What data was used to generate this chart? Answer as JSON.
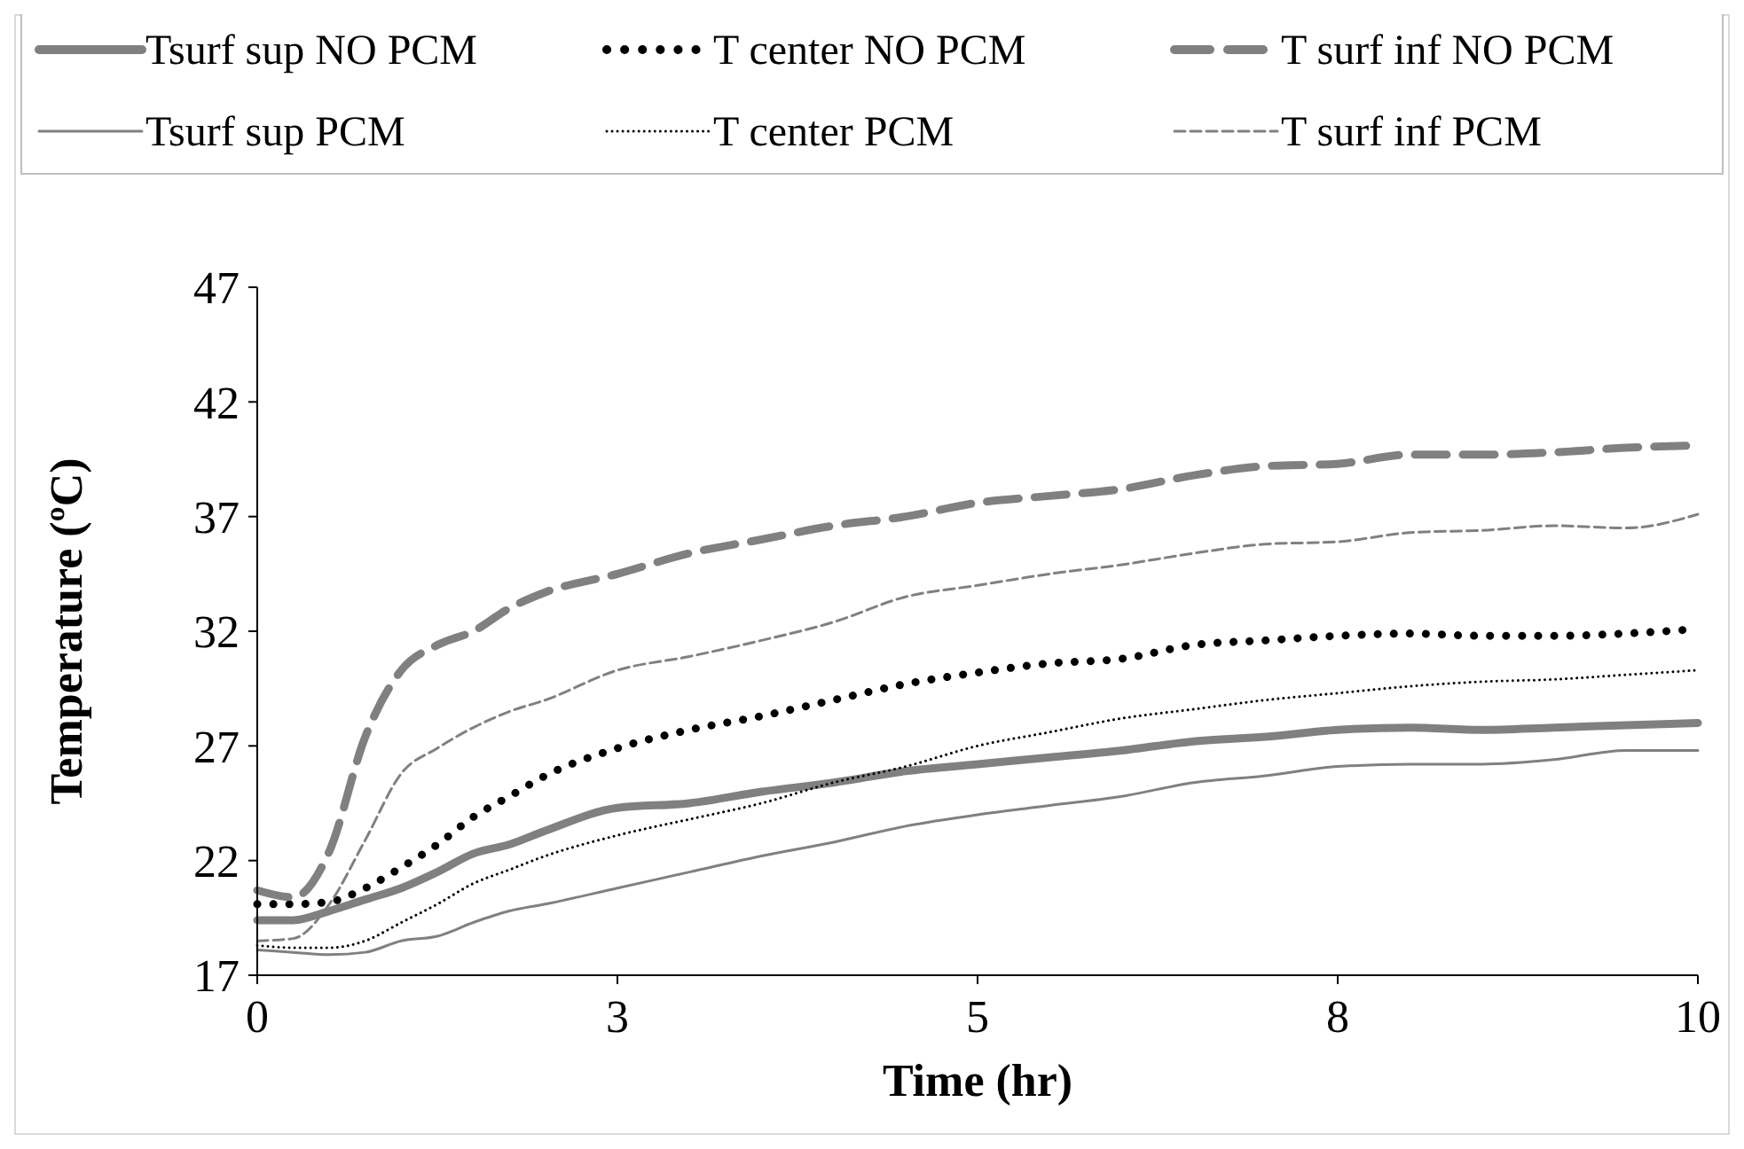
{
  "chart_data": {
    "type": "line",
    "xlabel": "Time (hr)",
    "ylabel": "Temperature (ºC)",
    "x": [
      0,
      0.25,
      0.5,
      0.75,
      1,
      1.25,
      1.5,
      1.75,
      2,
      2.5,
      3,
      3.5,
      4,
      4.5,
      5,
      5.5,
      6,
      6.5,
      7,
      7.5,
      8,
      8.5,
      9,
      9.5,
      10
    ],
    "xlim": [
      0,
      10
    ],
    "xticks": [
      0,
      {
        "value": 2.5,
        "label": "3"
      },
      5,
      {
        "value": 7.5,
        "label": "8"
      },
      10
    ],
    "ylim": [
      17,
      47
    ],
    "yticks": [
      17,
      22,
      27,
      32,
      37,
      42,
      47
    ],
    "grid": false,
    "legend": "top",
    "series": [
      {
        "name": "Tsurf sup NO PCM",
        "color": "#808080",
        "line_style": "solid",
        "values": [
          19.4,
          19.4,
          19.8,
          20.3,
          20.8,
          21.5,
          22.3,
          22.7,
          23.3,
          24.3,
          24.5,
          25.0,
          25.4,
          25.9,
          26.2,
          26.5,
          26.8,
          27.2,
          27.4,
          27.7,
          27.8,
          27.7,
          27.8,
          27.9,
          28.0
        ]
      },
      {
        "name": "T center NO PCM",
        "color": "#000000",
        "line_style": "dotted",
        "values": [
          20.1,
          20.1,
          20.2,
          20.8,
          21.7,
          22.7,
          23.9,
          24.8,
          25.7,
          26.9,
          27.7,
          28.3,
          29.0,
          29.7,
          30.2,
          30.6,
          30.8,
          31.4,
          31.6,
          31.8,
          31.9,
          31.8,
          31.8,
          31.9,
          32.1
        ]
      },
      {
        "name": "T surf inf NO PCM",
        "color": "#808080",
        "line_style": "dashed",
        "values": [
          20.7,
          20.4,
          22.4,
          27.4,
          30.3,
          31.4,
          32.0,
          33.0,
          33.7,
          34.5,
          35.4,
          36.0,
          36.6,
          37.0,
          37.6,
          37.9,
          38.2,
          38.8,
          39.2,
          39.3,
          39.7,
          39.7,
          39.8,
          40.0,
          40.1
        ]
      },
      {
        "name": "Tsurf sup PCM",
        "color": "#808080",
        "line_style": "solid",
        "values": [
          18.1,
          18.0,
          17.9,
          18.0,
          18.5,
          18.7,
          19.3,
          19.8,
          20.1,
          20.8,
          21.5,
          22.2,
          22.8,
          23.5,
          24.0,
          24.4,
          24.8,
          25.4,
          25.7,
          26.1,
          26.2,
          26.2,
          26.4,
          26.8,
          26.8
        ]
      },
      {
        "name": "T center PCM",
        "color": "#000000",
        "line_style": "dotted",
        "values": [
          18.3,
          18.2,
          18.2,
          18.5,
          19.3,
          20.1,
          21.0,
          21.6,
          22.2,
          23.1,
          23.8,
          24.5,
          25.4,
          26.1,
          27.0,
          27.6,
          28.2,
          28.6,
          29.0,
          29.3,
          29.6,
          29.8,
          29.9,
          30.1,
          30.3
        ]
      },
      {
        "name": "T surf inf PCM",
        "color": "#808080",
        "line_style": "dashed",
        "values": [
          18.5,
          18.6,
          20.1,
          22.9,
          25.8,
          26.9,
          27.8,
          28.5,
          29.0,
          30.3,
          30.9,
          31.6,
          32.4,
          33.5,
          34.0,
          34.5,
          34.9,
          35.4,
          35.8,
          35.9,
          36.3,
          36.4,
          36.6,
          36.5,
          37.1
        ]
      }
    ]
  }
}
